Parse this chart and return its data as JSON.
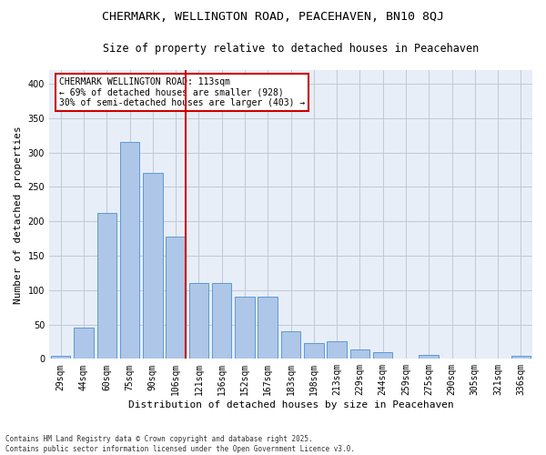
{
  "title1": "CHERMARK, WELLINGTON ROAD, PEACEHAVEN, BN10 8QJ",
  "title2": "Size of property relative to detached houses in Peacehaven",
  "xlabel": "Distribution of detached houses by size in Peacehaven",
  "ylabel": "Number of detached properties",
  "categories": [
    "29sqm",
    "44sqm",
    "60sqm",
    "75sqm",
    "90sqm",
    "106sqm",
    "121sqm",
    "136sqm",
    "152sqm",
    "167sqm",
    "183sqm",
    "198sqm",
    "213sqm",
    "229sqm",
    "244sqm",
    "259sqm",
    "275sqm",
    "290sqm",
    "305sqm",
    "321sqm",
    "336sqm"
  ],
  "values": [
    5,
    45,
    212,
    315,
    270,
    178,
    110,
    110,
    91,
    91,
    40,
    23,
    25,
    14,
    10,
    0,
    6,
    1,
    0,
    0,
    4
  ],
  "bar_color": "#aec6e8",
  "bar_edge_color": "#5b9bd5",
  "vline_x_index": 5,
  "marker_label_line1": "CHERMARK WELLINGTON ROAD: 113sqm",
  "marker_label_line2": "← 69% of detached houses are smaller (928)",
  "marker_label_line3": "30% of semi-detached houses are larger (403) →",
  "annotation_box_color": "#ffffff",
  "annotation_box_edge": "#cc0000",
  "vline_color": "#cc0000",
  "ylim": [
    0,
    420
  ],
  "yticks": [
    0,
    50,
    100,
    150,
    200,
    250,
    300,
    350,
    400
  ],
  "grid_color": "#c0c8d8",
  "bg_color": "#e8eef7",
  "footer": "Contains HM Land Registry data © Crown copyright and database right 2025.\nContains public sector information licensed under the Open Government Licence v3.0.",
  "title1_fontsize": 9.5,
  "title2_fontsize": 8.5,
  "xlabel_fontsize": 8,
  "ylabel_fontsize": 8,
  "tick_fontsize": 7,
  "annot_fontsize": 7,
  "footer_fontsize": 5.5
}
